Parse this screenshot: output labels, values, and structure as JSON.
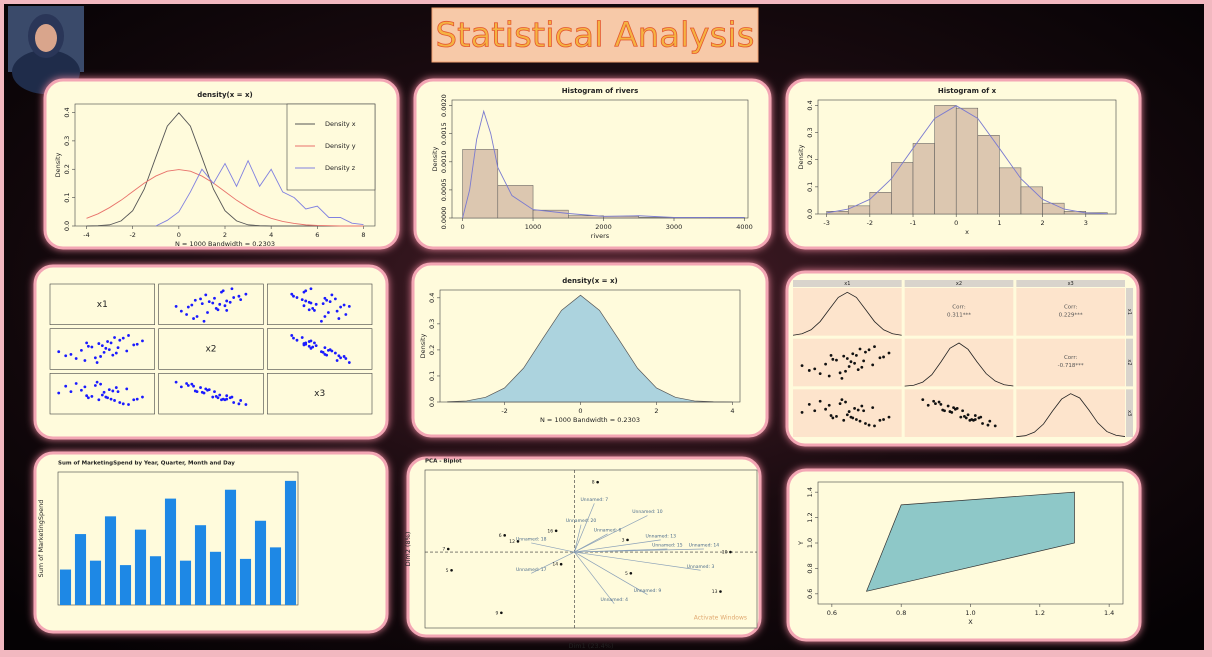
{
  "title": "Statistical Analysis",
  "chart_data": [
    {
      "type": "line",
      "title": "density(x = x)",
      "xlabel": "N = 1000   Bandwidth = 0.2303",
      "ylabel": "Density",
      "x": [
        -4,
        -3.5,
        -3,
        -2.5,
        -2,
        -1.5,
        -1,
        -0.5,
        0,
        0.5,
        1,
        1.5,
        2,
        2.5,
        3,
        3.5,
        4,
        4.5,
        5,
        5.5,
        6,
        6.5,
        7,
        7.5,
        8
      ],
      "series": [
        {
          "name": "Density x",
          "color": "#555555",
          "values": [
            0,
            0.001,
            0.004,
            0.018,
            0.054,
            0.13,
            0.242,
            0.352,
            0.399,
            0.352,
            0.242,
            0.13,
            0.054,
            0.018,
            0.004,
            0.001,
            0,
            0,
            0,
            0,
            0,
            0,
            0,
            0,
            0
          ]
        },
        {
          "name": "Density y",
          "color": "#e8726b",
          "values": [
            0.027,
            0.043,
            0.065,
            0.091,
            0.121,
            0.151,
            0.176,
            0.193,
            0.199,
            0.193,
            0.176,
            0.151,
            0.121,
            0.091,
            0.065,
            0.043,
            0.027,
            0.016,
            0.009,
            0.004,
            0.002,
            0.001,
            0,
            0,
            0
          ]
        },
        {
          "name": "Density z",
          "color": "#8080e0",
          "values": [
            null,
            null,
            null,
            null,
            null,
            null,
            0,
            0.02,
            0.05,
            0.12,
            0.2,
            0.15,
            0.22,
            0.14,
            0.23,
            0.14,
            0.2,
            0.12,
            0.1,
            0.06,
            0.07,
            0.03,
            0.03,
            0.01,
            0.005
          ]
        }
      ],
      "xlim": [
        -4.5,
        8.5
      ],
      "xticks": [
        -4,
        -2,
        0,
        2,
        4,
        6,
        8
      ],
      "ylim": [
        0,
        0.43
      ],
      "yticks": [
        {
          "value": 0,
          "label": "0.0"
        },
        0.1,
        0.2,
        0.3,
        0.4
      ],
      "legend": "topright"
    },
    {
      "type": "histogram",
      "title": "Histogram of rivers",
      "xlabel": "rivers",
      "ylabel": "Density",
      "bins": [
        0,
        500,
        1000,
        1500,
        2000,
        2500,
        3000,
        3500,
        4000
      ],
      "values": [
        0.00122,
        0.00058,
        0.00014,
        4e-05,
        3e-05,
        1e-05,
        1e-05,
        1e-05
      ],
      "color": "#dcc7b0",
      "curve": {
        "color": "#7b7bd0",
        "x": [
          0,
          100,
          200,
          300,
          400,
          500,
          700,
          1000,
          1500,
          2000,
          2500,
          3000,
          3500,
          4000
        ],
        "y": [
          0,
          0.0005,
          0.0014,
          0.0019,
          0.0015,
          0.0009,
          0.0004,
          0.00015,
          8e-05,
          3e-05,
          4e-05,
          1e-05,
          1e-05,
          1e-05
        ]
      },
      "xlim": [
        -150,
        4050
      ],
      "xticks": [
        0,
        1000,
        2000,
        3000,
        4000
      ],
      "ylim": [
        0,
        0.0021
      ],
      "yticks": [
        {
          "value": 0,
          "label": "0.0000"
        },
        {
          "value": 0.0005,
          "label": "0.0005"
        },
        {
          "value": 0.001,
          "label": "0.0010"
        },
        {
          "value": 0.0015,
          "label": "0.0015"
        },
        {
          "value": 0.002,
          "label": "0.0020"
        }
      ]
    },
    {
      "type": "histogram",
      "title": "Histogram of x",
      "xlabel": "x",
      "ylabel": "Density",
      "bins": [
        -3,
        -2.5,
        -2,
        -1.5,
        -1,
        -0.5,
        0,
        0.5,
        1,
        1.5,
        2,
        2.5,
        3,
        3.5
      ],
      "values": [
        0.01,
        0.03,
        0.08,
        0.19,
        0.26,
        0.4,
        0.39,
        0.29,
        0.17,
        0.1,
        0.04,
        0.01,
        0.005
      ],
      "color": "#dcc7b0",
      "curve": {
        "color": "#7b7bd0",
        "x": [
          -3,
          -2.5,
          -2,
          -1.5,
          -1,
          -0.5,
          0,
          0.5,
          1,
          1.5,
          2,
          2.5,
          3,
          3.5
        ],
        "y": [
          0.004,
          0.018,
          0.054,
          0.13,
          0.242,
          0.352,
          0.399,
          0.352,
          0.242,
          0.13,
          0.054,
          0.018,
          0.004,
          0.001
        ]
      },
      "xlim": [
        -3.2,
        3.7
      ],
      "xticks": [
        -3,
        -2,
        -1,
        0,
        1,
        2,
        3
      ],
      "ylim": [
        0,
        0.42
      ],
      "yticks": [
        {
          "value": 0,
          "label": "0.0"
        },
        0.1,
        0.2,
        0.3,
        0.4
      ]
    },
    {
      "type": "scatter_matrix",
      "color": "#1a1aff",
      "xlim": [
        -3,
        3
      ],
      "ylim": [
        -3,
        3
      ],
      "variables": [
        {
          "name": "x1",
          "values": [
            0.5,
            -1.2,
            0.3,
            1.8,
            -0.4,
            0.9,
            -2.1,
            0.1,
            1.2,
            -0.8,
            0.6,
            -1.5,
            2.3,
            -0.2,
            0.4,
            -0.6,
            1.5,
            -1.0,
            0.0,
            0.8,
            -2.5,
            1.0,
            -0.3,
            0.2,
            -1.8,
            1.4,
            0.7,
            -0.9,
            2.0,
            -0.1
          ]
        },
        {
          "name": "x2",
          "values": [
            0.9,
            -0.2,
            1.1,
            0.6,
            -1.3,
            0.2,
            -1.0,
            -0.5,
            1.6,
            0.4,
            -0.9,
            -1.4,
            1.2,
            0.8,
            -0.1,
            0.3,
            2.0,
            -1.7,
            0.5,
            -0.6,
            -0.4,
            1.3,
            -2.0,
            0.1,
            -0.8,
            -0.3,
            1.7,
            0.9,
            0.7,
            -1.1
          ]
        },
        {
          "name": "x3",
          "values": [
            -0.8,
            0.5,
            -0.6,
            -0.9,
            1.2,
            0.3,
            1.1,
            0.2,
            -1.5,
            -0.6,
            0.4,
            1.5,
            -0.5,
            -0.9,
            0.6,
            -0.4,
            -1.6,
            1.0,
            -0.2,
            0.9,
            0.1,
            -1.3,
            1.7,
            -0.5,
            0.3,
            0.7,
            -1.0,
            -0.3,
            -0.8,
            1.4
          ]
        }
      ]
    },
    {
      "type": "area",
      "title": "density(x = x)",
      "xlabel": "N = 1000   Bandwidth = 0.2303",
      "ylabel": "Density",
      "color": "#acd3de",
      "x": [
        -3.5,
        -3,
        -2.5,
        -2,
        -1.5,
        -1,
        -0.5,
        0,
        0.5,
        1,
        1.5,
        2,
        2.5,
        3,
        3.5,
        4
      ],
      "values": [
        0.001,
        0.004,
        0.018,
        0.054,
        0.13,
        0.242,
        0.352,
        0.41,
        0.352,
        0.242,
        0.13,
        0.054,
        0.018,
        0.004,
        0.001,
        0
      ],
      "xlim": [
        -3.7,
        4.2
      ],
      "xticks": [
        -2,
        0,
        2,
        4
      ],
      "ylim": [
        0,
        0.43
      ],
      "yticks": [
        {
          "value": 0,
          "label": "0.0"
        },
        0.1,
        0.2,
        0.3,
        0.4
      ]
    },
    {
      "type": "pairs",
      "color": "#111111",
      "xlim": [
        -3,
        3
      ],
      "ylim": [
        -3,
        3
      ],
      "variables": [
        {
          "name": "x1",
          "values": [
            0.5,
            -1.2,
            0.3,
            1.8,
            -0.4,
            0.9,
            -2.1,
            0.1,
            1.2,
            -0.8,
            0.6,
            -1.5,
            2.3,
            -0.2,
            0.4,
            -0.6,
            1.5,
            -1.0,
            0.0,
            0.8,
            -2.5,
            1.0,
            -0.3,
            0.2,
            -1.8,
            1.4,
            0.7,
            -0.9,
            2.0,
            -0.1
          ]
        },
        {
          "name": "x2",
          "values": [
            0.9,
            -0.2,
            1.1,
            0.6,
            -1.3,
            0.2,
            -1.0,
            -0.5,
            1.6,
            0.4,
            -0.9,
            -1.4,
            1.2,
            0.8,
            -0.1,
            0.3,
            2.0,
            -1.7,
            0.5,
            -0.6,
            -0.4,
            1.3,
            -2.0,
            0.1,
            -0.8,
            -0.3,
            1.7,
            0.9,
            0.7,
            -1.1
          ]
        },
        {
          "name": "x3",
          "values": [
            -0.8,
            0.5,
            -0.6,
            -0.9,
            1.2,
            0.3,
            1.1,
            0.2,
            -1.5,
            -0.6,
            0.4,
            1.5,
            -0.5,
            -0.9,
            0.6,
            -0.4,
            -1.6,
            1.0,
            -0.2,
            0.9,
            0.1,
            -1.3,
            1.7,
            -0.5,
            0.3,
            0.7,
            -1.0,
            -0.3,
            -0.8,
            1.4
          ]
        }
      ],
      "density_x": [
        -3,
        -2.5,
        -2,
        -1.5,
        -1,
        -0.5,
        0,
        0.5,
        1,
        1.5,
        2,
        2.5,
        3
      ],
      "densities": [
        [
          0.004,
          0.018,
          0.054,
          0.13,
          0.242,
          0.352,
          0.399,
          0.352,
          0.242,
          0.13,
          0.054,
          0.018,
          0.004
        ],
        [
          0.002,
          0.01,
          0.04,
          0.11,
          0.23,
          0.36,
          0.41,
          0.35,
          0.23,
          0.12,
          0.05,
          0.015,
          0.003
        ],
        [
          0.003,
          0.012,
          0.045,
          0.12,
          0.24,
          0.35,
          0.4,
          0.36,
          0.25,
          0.13,
          0.05,
          0.016,
          0.004
        ]
      ],
      "corr_title": "Corr:",
      "corr_values": [
        0.311,
        0.229,
        -0.718
      ],
      "value_labels": [
        "0.311***",
        "0.229***",
        "-0.718***"
      ]
    },
    {
      "type": "bar",
      "title": "Sum of MarketingSpend by Year, Quarter, Month and Day",
      "ylabel": "Sum of MarketingSpend",
      "color": "#1e88e5",
      "categories": [
        null,
        null,
        null,
        null,
        null,
        null,
        null,
        null,
        null,
        null,
        null,
        null,
        null,
        null,
        null,
        null
      ],
      "values": [
        40,
        80,
        50,
        100,
        45,
        85,
        55,
        120,
        50,
        90,
        60,
        130,
        52,
        95,
        65,
        140
      ],
      "ylim": [
        0,
        150
      ]
    },
    {
      "type": "biplot",
      "title": "PCA - Biplot",
      "xlabel": "Dim1 (23.4%)",
      "ylabel": "Dim2 (8%)",
      "watermark": "Activate Windows",
      "xlim": [
        -4.5,
        5.5
      ],
      "ylim": [
        -2.5,
        2.7
      ],
      "points": [
        {
          "label": "6",
          "x": -2.1,
          "y": 0.55
        },
        {
          "label": "12",
          "x": -1.7,
          "y": 0.35
        },
        {
          "label": "16",
          "x": -0.55,
          "y": 0.7
        },
        {
          "label": "7",
          "x": -3.8,
          "y": 0.1
        },
        {
          "label": "5",
          "x": -3.7,
          "y": -0.6
        },
        {
          "label": "14",
          "x": -0.4,
          "y": -0.4
        },
        {
          "label": "3",
          "x": 1.6,
          "y": 0.4
        },
        {
          "label": "5",
          "x": 1.7,
          "y": -0.7
        },
        {
          "label": "10",
          "x": 4.7,
          "y": 0.0
        },
        {
          "label": "13",
          "x": 4.4,
          "y": -1.3
        },
        {
          "label": "8",
          "x": 0.7,
          "y": 2.3
        },
        {
          "label": "9",
          "x": -2.2,
          "y": -2.0
        }
      ],
      "arrows": [
        {
          "name": "Unnamed: 7",
          "x": 0.6,
          "y": 1.6
        },
        {
          "name": "Unnamed: 10",
          "x": 2.2,
          "y": 1.2
        },
        {
          "name": "Unnamed: 20",
          "x": 0.2,
          "y": 0.9
        },
        {
          "name": "Unnamed: 6",
          "x": 1.0,
          "y": 0.6
        },
        {
          "name": "Unnamed: 13",
          "x": 2.6,
          "y": 0.4
        },
        {
          "name": "Unnamed: 15",
          "x": 2.8,
          "y": 0.1
        },
        {
          "name": "Unnamed: 18",
          "x": -1.3,
          "y": 0.3
        },
        {
          "name": "Unnamed: 17",
          "x": -1.3,
          "y": -0.7
        },
        {
          "name": "Unnamed: 3",
          "x": 3.8,
          "y": -0.6
        },
        {
          "name": "Unnamed: 9",
          "x": 2.2,
          "y": -1.4
        },
        {
          "name": "Unnamed: 4",
          "x": 1.2,
          "y": -1.7
        },
        {
          "name": "Unnamed: 14",
          "x": 3.9,
          "y": 0.1
        }
      ]
    },
    {
      "type": "polygon",
      "xlabel": "X",
      "ylabel": "Y",
      "color": "#8ec8c8",
      "x": [
        0.7,
        0.8,
        1.3,
        1.3
      ],
      "y": [
        0.62,
        1.3,
        1.4,
        1.0
      ],
      "xlim": [
        0.56,
        1.44
      ],
      "xticks": [
        0.6,
        0.8,
        {
          "value": 1,
          "label": "1.0"
        },
        1.2,
        1.4
      ],
      "ylim": [
        0.52,
        1.48
      ],
      "yticks": [
        0.6,
        0.8,
        {
          "value": 1,
          "label": "1.0"
        },
        1.2,
        1.4
      ]
    }
  ]
}
